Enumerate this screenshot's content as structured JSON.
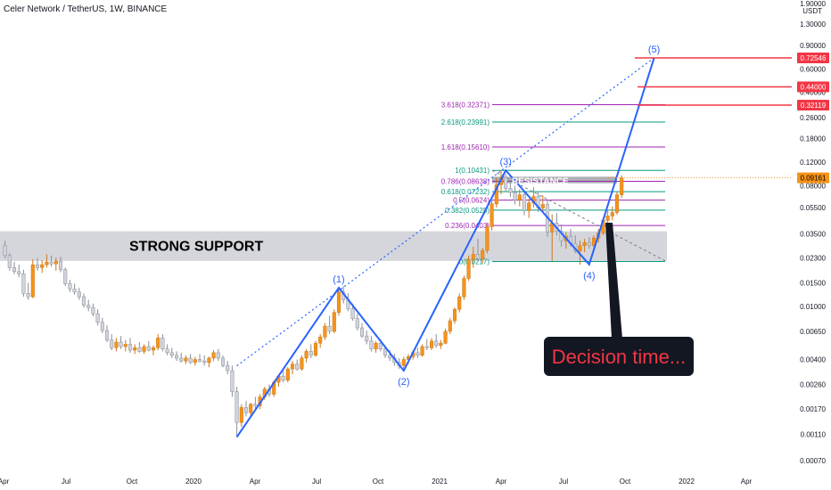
{
  "header": {
    "title": "Celer Network / TetherUS, 1W, BINANCE"
  },
  "axis": {
    "currency": "USDT",
    "top_cut_label": "1.90000"
  },
  "colors": {
    "up_candle": "#f7931a",
    "down_candle": "#d1d4dc",
    "wave_line": "#2962ff",
    "tag_red": "#f23645",
    "tag_orange": "#f7931a",
    "fib_green": "#089981",
    "fib_purple": "#9c27b0",
    "zone_fill": "#b2b5be"
  },
  "annotations": {
    "support_label": "STRONG SUPPORT",
    "resistance_label": "RESISTANCE",
    "note": "Decision time..."
  },
  "chart_data": {
    "type": "candlestick",
    "symbol": "CELR/USDT",
    "interval": "1W",
    "exchange": "BINANCE",
    "y_scale": "log",
    "y_ticks": [
      "1.30000",
      "0.90000",
      "0.60000",
      "0.40000",
      "0.26000",
      "0.18000",
      "0.12000",
      "0.08000",
      "0.05500",
      "0.03500",
      "0.02300",
      "0.01500",
      "0.01000",
      "0.00650",
      "0.00400",
      "0.00260",
      "0.00170",
      "0.00110",
      "0.00070"
    ],
    "x_ticks": [
      "Apr",
      "Jul",
      "Oct",
      "2020",
      "Apr",
      "Jul",
      "Oct",
      "2021",
      "Apr",
      "Jul",
      "Oct",
      "2022",
      "Apr"
    ],
    "price_tags": [
      {
        "label": "0.72546",
        "value": 0.72546,
        "color": "red"
      },
      {
        "label": "0.44000",
        "value": 0.44,
        "color": "red"
      },
      {
        "label": "0.32119",
        "value": 0.32119,
        "color": "red"
      },
      {
        "label": "0.09161",
        "value": 0.09161,
        "color": "orange"
      }
    ],
    "fib_levels": [
      {
        "label": "3.618(0.32371)",
        "value": 0.32371,
        "color": "purple"
      },
      {
        "label": "2.618(0.23991)",
        "value": 0.23991,
        "color": "green"
      },
      {
        "label": "1.618(0.15610)",
        "value": 0.1561,
        "color": "purple"
      },
      {
        "label": "1(0.10431)",
        "value": 0.10431,
        "color": "green"
      },
      {
        "label": "0.786(0.08638)",
        "value": 0.08638,
        "color": "purple"
      },
      {
        "label": "0.618(0.07232)",
        "value": 0.07232,
        "color": "green"
      },
      {
        "label": "0.5(0.0624)",
        "value": 0.0624,
        "color": "purple"
      },
      {
        "label": "0.382(0.0525)",
        "value": 0.0525,
        "color": "green"
      },
      {
        "label": "0.236(0.0403)",
        "value": 0.0403,
        "color": "purple"
      },
      {
        "label": "0(0.0217)",
        "value": 0.0217,
        "color": "green"
      }
    ],
    "waves": [
      {
        "label": "(1)",
        "x_week": 72,
        "price": 0.0138
      },
      {
        "label": "(2)",
        "x_week": 86,
        "price": 0.0033
      },
      {
        "label": "(3)",
        "x_week": 108,
        "price": 0.1043
      },
      {
        "label": "(4)",
        "x_week": 126,
        "price": 0.0206
      },
      {
        "label": "(5)",
        "x_week": 140,
        "price": 0.7255
      }
    ],
    "wave_path_weeks": [
      [
        50,
        0.00105
      ],
      [
        72,
        0.0138
      ],
      [
        86,
        0.0033
      ],
      [
        108,
        0.1043
      ],
      [
        126,
        0.0206
      ],
      [
        140,
        0.7255
      ]
    ],
    "zones": {
      "support": [
        0.0219,
        0.0365
      ],
      "resistance": [
        0.0835,
        0.0935
      ]
    },
    "candles": [
      [
        0.0285,
        0.031,
        0.023,
        0.024
      ],
      [
        0.024,
        0.025,
        0.0185,
        0.0195
      ],
      [
        0.0195,
        0.0215,
        0.0175,
        0.0182
      ],
      [
        0.0182,
        0.0205,
        0.0165,
        0.0175
      ],
      [
        0.0175,
        0.0188,
        0.0118,
        0.0125
      ],
      [
        0.0125,
        0.015,
        0.0112,
        0.0118
      ],
      [
        0.0118,
        0.0225,
        0.0115,
        0.0205
      ],
      [
        0.0205,
        0.023,
        0.0185,
        0.0195
      ],
      [
        0.0195,
        0.0222,
        0.0178,
        0.0205
      ],
      [
        0.0205,
        0.0245,
        0.0195,
        0.0215
      ],
      [
        0.0215,
        0.024,
        0.0198,
        0.0208
      ],
      [
        0.0208,
        0.0232,
        0.0185,
        0.0218
      ],
      [
        0.0218,
        0.0235,
        0.018,
        0.0188
      ],
      [
        0.0188,
        0.0195,
        0.0142,
        0.0148
      ],
      [
        0.0148,
        0.0158,
        0.0128,
        0.0135
      ],
      [
        0.0135,
        0.0148,
        0.0122,
        0.0128
      ],
      [
        0.0128,
        0.0138,
        0.0112,
        0.0118
      ],
      [
        0.0118,
        0.0125,
        0.0098,
        0.0102
      ],
      [
        0.0102,
        0.0112,
        0.0092,
        0.0098
      ],
      [
        0.0098,
        0.0105,
        0.0084,
        0.0088
      ],
      [
        0.0088,
        0.0095,
        0.0072,
        0.0076
      ],
      [
        0.0076,
        0.0082,
        0.0063,
        0.0066
      ],
      [
        0.0066,
        0.0072,
        0.0054,
        0.0056
      ],
      [
        0.0056,
        0.0062,
        0.0047,
        0.0049
      ],
      [
        0.0049,
        0.0058,
        0.0046,
        0.0054
      ],
      [
        0.0054,
        0.006,
        0.0048,
        0.005
      ],
      [
        0.005,
        0.0056,
        0.0046,
        0.0052
      ],
      [
        0.0052,
        0.0058,
        0.0045,
        0.0047
      ],
      [
        0.0047,
        0.0052,
        0.0044,
        0.0049
      ],
      [
        0.0049,
        0.0054,
        0.0045,
        0.0046
      ],
      [
        0.0046,
        0.0052,
        0.0044,
        0.005
      ],
      [
        0.005,
        0.0055,
        0.0046,
        0.0047
      ],
      [
        0.0047,
        0.0051,
        0.0043,
        0.0049
      ],
      [
        0.0049,
        0.0062,
        0.0047,
        0.0058
      ],
      [
        0.0058,
        0.0062,
        0.0046,
        0.0048
      ],
      [
        0.0048,
        0.0052,
        0.0043,
        0.0045
      ],
      [
        0.0045,
        0.0049,
        0.0041,
        0.0043
      ],
      [
        0.0043,
        0.0046,
        0.0039,
        0.0041
      ],
      [
        0.0041,
        0.0045,
        0.0038,
        0.0039
      ],
      [
        0.0039,
        0.0043,
        0.0037,
        0.0041
      ],
      [
        0.0041,
        0.0044,
        0.0037,
        0.0038
      ],
      [
        0.0038,
        0.0042,
        0.0036,
        0.004
      ],
      [
        0.004,
        0.0044,
        0.0038,
        0.0039
      ],
      [
        0.0039,
        0.0043,
        0.0036,
        0.0038
      ],
      [
        0.0038,
        0.0042,
        0.0035,
        0.0041
      ],
      [
        0.0041,
        0.0047,
        0.0039,
        0.0045
      ],
      [
        0.0045,
        0.0048,
        0.0039,
        0.0041
      ],
      [
        0.0041,
        0.0043,
        0.0035,
        0.0036
      ],
      [
        0.0036,
        0.0039,
        0.0031,
        0.0033
      ],
      [
        0.0033,
        0.0036,
        0.0021,
        0.0023
      ],
      [
        0.0023,
        0.0025,
        0.00105,
        0.00135
      ],
      [
        0.00135,
        0.00185,
        0.00125,
        0.00175
      ],
      [
        0.00175,
        0.00195,
        0.0015,
        0.0016
      ],
      [
        0.0016,
        0.0019,
        0.0015,
        0.00185
      ],
      [
        0.00185,
        0.0021,
        0.0017,
        0.0018
      ],
      [
        0.0018,
        0.0022,
        0.0017,
        0.0021
      ],
      [
        0.0021,
        0.0025,
        0.002,
        0.0024
      ],
      [
        0.0024,
        0.0026,
        0.0021,
        0.0022
      ],
      [
        0.0022,
        0.0028,
        0.0021,
        0.0027
      ],
      [
        0.0027,
        0.0031,
        0.0025,
        0.003
      ],
      [
        0.003,
        0.0033,
        0.0027,
        0.0028
      ],
      [
        0.0028,
        0.0035,
        0.0027,
        0.0034
      ],
      [
        0.0034,
        0.0039,
        0.0031,
        0.0037
      ],
      [
        0.0037,
        0.004,
        0.0033,
        0.0034
      ],
      [
        0.0034,
        0.0043,
        0.0033,
        0.0041
      ],
      [
        0.0041,
        0.0048,
        0.0038,
        0.0046
      ],
      [
        0.0046,
        0.0052,
        0.0041,
        0.0043
      ],
      [
        0.0043,
        0.0055,
        0.0042,
        0.0053
      ],
      [
        0.0053,
        0.0062,
        0.0049,
        0.0059
      ],
      [
        0.0059,
        0.0075,
        0.0056,
        0.0071
      ],
      [
        0.0071,
        0.0085,
        0.0062,
        0.0065
      ],
      [
        0.0065,
        0.0095,
        0.0063,
        0.009
      ],
      [
        0.009,
        0.0138,
        0.0085,
        0.0128
      ],
      [
        0.0128,
        0.0142,
        0.0105,
        0.0112
      ],
      [
        0.0112,
        0.0125,
        0.0092,
        0.0096
      ],
      [
        0.0096,
        0.0105,
        0.0078,
        0.0081
      ],
      [
        0.0081,
        0.0088,
        0.0066,
        0.0069
      ],
      [
        0.0069,
        0.0075,
        0.0058,
        0.006
      ],
      [
        0.006,
        0.0066,
        0.0052,
        0.0055
      ],
      [
        0.0055,
        0.006,
        0.0046,
        0.0048
      ],
      [
        0.0048,
        0.0055,
        0.0045,
        0.0053
      ],
      [
        0.0053,
        0.0057,
        0.0046,
        0.0048
      ],
      [
        0.0048,
        0.0051,
        0.0041,
        0.0043
      ],
      [
        0.0043,
        0.0047,
        0.0039,
        0.0041
      ],
      [
        0.0041,
        0.0044,
        0.0036,
        0.0038
      ],
      [
        0.0038,
        0.0041,
        0.0034,
        0.0036
      ],
      [
        0.0036,
        0.0042,
        0.0033,
        0.004
      ],
      [
        0.004,
        0.0044,
        0.0037,
        0.0042
      ],
      [
        0.0042,
        0.0047,
        0.004,
        0.0045
      ],
      [
        0.0045,
        0.0049,
        0.0041,
        0.0043
      ],
      [
        0.0043,
        0.0052,
        0.0042,
        0.005
      ],
      [
        0.005,
        0.0057,
        0.0047,
        0.0049
      ],
      [
        0.0049,
        0.0058,
        0.0047,
        0.0055
      ],
      [
        0.0055,
        0.0062,
        0.0049,
        0.0051
      ],
      [
        0.0051,
        0.0056,
        0.0048,
        0.0053
      ],
      [
        0.0053,
        0.0068,
        0.0052,
        0.0065
      ],
      [
        0.0065,
        0.0082,
        0.0062,
        0.0078
      ],
      [
        0.0078,
        0.0098,
        0.0074,
        0.0095
      ],
      [
        0.0095,
        0.0125,
        0.009,
        0.0118
      ],
      [
        0.0118,
        0.017,
        0.0112,
        0.0162
      ],
      [
        0.0162,
        0.024,
        0.0155,
        0.0225
      ],
      [
        0.0225,
        0.028,
        0.0195,
        0.0245
      ],
      [
        0.0245,
        0.032,
        0.0215,
        0.0228
      ],
      [
        0.0228,
        0.0275,
        0.021,
        0.0262
      ],
      [
        0.0262,
        0.042,
        0.025,
        0.0395
      ],
      [
        0.0395,
        0.062,
        0.037,
        0.0585
      ],
      [
        0.0585,
        0.092,
        0.055,
        0.0815
      ],
      [
        0.0815,
        0.1043,
        0.069,
        0.0925
      ],
      [
        0.0925,
        0.098,
        0.072,
        0.0765
      ],
      [
        0.0765,
        0.088,
        0.066,
        0.0712
      ],
      [
        0.0712,
        0.08,
        0.058,
        0.0625
      ],
      [
        0.0625,
        0.075,
        0.056,
        0.0685
      ],
      [
        0.0685,
        0.072,
        0.048,
        0.052
      ],
      [
        0.052,
        0.064,
        0.046,
        0.0595
      ],
      [
        0.0595,
        0.078,
        0.055,
        0.0665
      ],
      [
        0.0665,
        0.072,
        0.051,
        0.0545
      ],
      [
        0.0545,
        0.068,
        0.05,
        0.058
      ],
      [
        0.058,
        0.062,
        0.033,
        0.036
      ],
      [
        0.036,
        0.049,
        0.0219,
        0.042
      ],
      [
        0.042,
        0.05,
        0.034,
        0.0365
      ],
      [
        0.0365,
        0.041,
        0.028,
        0.031
      ],
      [
        0.031,
        0.036,
        0.027,
        0.0335
      ],
      [
        0.0335,
        0.038,
        0.028,
        0.0295
      ],
      [
        0.0295,
        0.034,
        0.025,
        0.026
      ],
      [
        0.026,
        0.031,
        0.0205,
        0.0285
      ],
      [
        0.0285,
        0.032,
        0.0255,
        0.03
      ],
      [
        0.03,
        0.033,
        0.027,
        0.0285
      ],
      [
        0.0285,
        0.034,
        0.0275,
        0.0325
      ],
      [
        0.0325,
        0.038,
        0.03,
        0.0355
      ],
      [
        0.0355,
        0.046,
        0.034,
        0.044
      ],
      [
        0.044,
        0.052,
        0.041,
        0.0475
      ],
      [
        0.0475,
        0.056,
        0.044,
        0.0505
      ],
      [
        0.0505,
        0.072,
        0.0485,
        0.0685
      ],
      [
        0.0685,
        0.096,
        0.065,
        0.0915
      ]
    ]
  }
}
